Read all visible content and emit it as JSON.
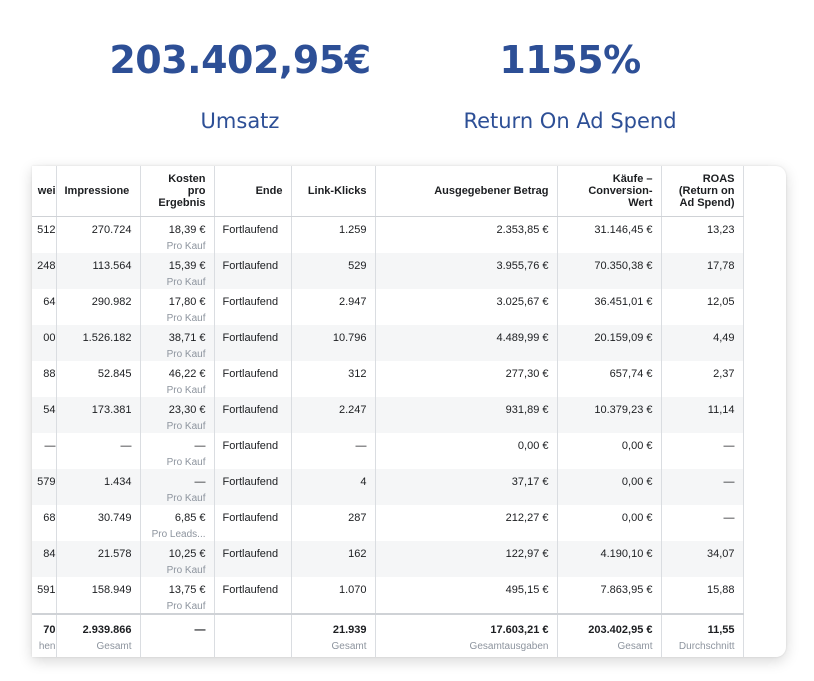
{
  "kpis": [
    {
      "value": "203.402,95€",
      "label": "Umsatz"
    },
    {
      "value": "1155%",
      "label": "Return On Ad Spend"
    }
  ],
  "table": {
    "headers": {
      "c0": "wei",
      "c1": "Impressione",
      "c2": "Kosten pro Ergebnis",
      "c3": "Ende",
      "c4": "Link-Klicks",
      "c5": "Ausgegebener Betrag",
      "c6": "Käufe – Conversion-Wert",
      "c7": "ROAS (Return on Ad Spend)"
    },
    "rows": [
      {
        "c0": "512",
        "c1": "270.724",
        "c2": "18,39 €",
        "c2_sub": "Pro Kauf",
        "c3": "Fortlaufend",
        "c4": "1.259",
        "c5": "2.353,85 €",
        "c6": "31.146,45 €",
        "c7": "13,23"
      },
      {
        "c0": "248",
        "c1": "113.564",
        "c2": "15,39 €",
        "c2_sub": "Pro Kauf",
        "c3": "Fortlaufend",
        "c4": "529",
        "c5": "3.955,76 €",
        "c6": "70.350,38 €",
        "c7": "17,78"
      },
      {
        "c0": "64",
        "c1": "290.982",
        "c2": "17,80 €",
        "c2_sub": "Pro Kauf",
        "c3": "Fortlaufend",
        "c4": "2.947",
        "c5": "3.025,67 €",
        "c6": "36.451,01 €",
        "c7": "12,05"
      },
      {
        "c0": "00",
        "c1": "1.526.182",
        "c2": "38,71 €",
        "c2_sub": "Pro Kauf",
        "c3": "Fortlaufend",
        "c4": "10.796",
        "c5": "4.489,99 €",
        "c6": "20.159,09 €",
        "c7": "4,49"
      },
      {
        "c0": "88",
        "c1": "52.845",
        "c2": "46,22 €",
        "c2_sub": "Pro Kauf",
        "c3": "Fortlaufend",
        "c4": "312",
        "c5": "277,30 €",
        "c6": "657,74 €",
        "c7": "2,37"
      },
      {
        "c0": "54",
        "c1": "173.381",
        "c2": "23,30 €",
        "c2_sub": "Pro Kauf",
        "c3": "Fortlaufend",
        "c4": "2.247",
        "c5": "931,89 €",
        "c6": "10.379,23 €",
        "c7": "11,14"
      },
      {
        "c0": "—",
        "c1": "—",
        "c2": "—",
        "c2_sub": "Pro Kauf",
        "c3": "Fortlaufend",
        "c4": "—",
        "c5": "0,00 €",
        "c6": "0,00 €",
        "c7": "—"
      },
      {
        "c0": "579",
        "c1": "1.434",
        "c2": "—",
        "c2_sub": "Pro Kauf",
        "c3": "Fortlaufend",
        "c4": "4",
        "c5": "37,17 €",
        "c6": "0,00 €",
        "c7": "—"
      },
      {
        "c0": "68",
        "c1": "30.749",
        "c2": "6,85 €",
        "c2_sub": "Pro Leads...",
        "c3": "Fortlaufend",
        "c4": "287",
        "c5": "212,27 €",
        "c6": "0,00 €",
        "c7": "—"
      },
      {
        "c0": "84",
        "c1": "21.578",
        "c2": "10,25 €",
        "c2_sub": "Pro Kauf",
        "c3": "Fortlaufend",
        "c4": "162",
        "c5": "122,97 €",
        "c6": "4.190,10 €",
        "c7": "34,07"
      },
      {
        "c0": "591",
        "c1": "158.949",
        "c2": "13,75 €",
        "c2_sub": "Pro Kauf",
        "c3": "Fortlaufend",
        "c4": "1.070",
        "c5": "495,15 €",
        "c6": "7.863,95 €",
        "c7": "15,88"
      }
    ],
    "totals": {
      "c0": "70",
      "c0_sub": "hen",
      "c1": "2.939.866",
      "c1_sub": "Gesamt",
      "c2": "—",
      "c3": "",
      "c4": "21.939",
      "c4_sub": "Gesamt",
      "c5": "17.603,21 €",
      "c5_sub": "Gesamtausgaben",
      "c6": "203.402,95 €",
      "c6_sub": "Gesamt",
      "c7": "11,55",
      "c7_sub": "Durchschnitt"
    }
  }
}
